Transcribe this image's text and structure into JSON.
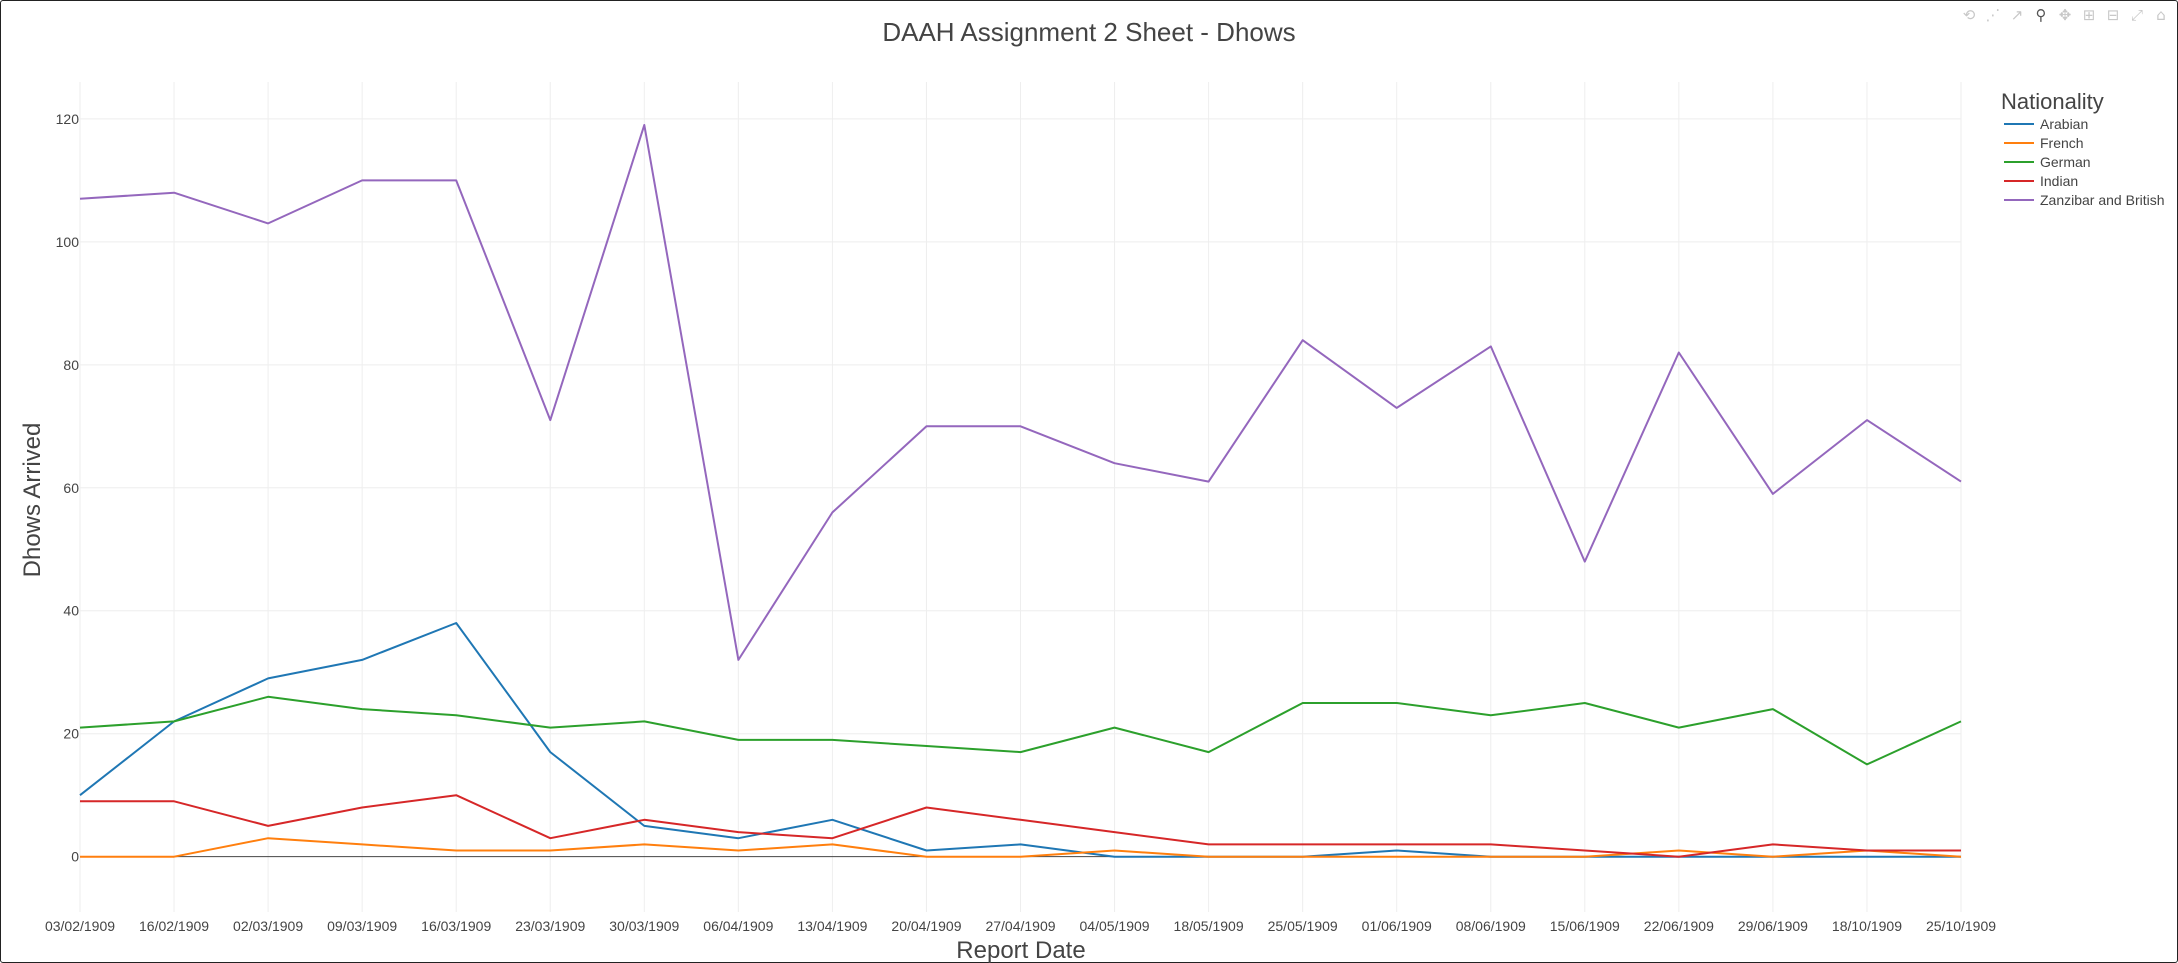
{
  "modebar": {
    "icons": [
      "reset-axes-icon",
      "autoscale-icon",
      "line-icon",
      "zoom-icon",
      "pan-icon",
      "zoom-in-icon",
      "zoom-out-icon",
      "autoscale-box-icon",
      "home-icon"
    ]
  },
  "chart_data": {
    "type": "line",
    "title": "DAAH Assignment 2 Sheet - Dhows",
    "xlabel": "Report Date",
    "ylabel": "Dhows Arrived",
    "ylim": [
      -9,
      126
    ],
    "yticks": [
      0,
      20,
      40,
      60,
      80,
      100,
      120
    ],
    "grid": true,
    "legend": {
      "title": "Nationality",
      "position": "top-right"
    },
    "categories": [
      "03/02/1909",
      "16/02/1909",
      "02/03/1909",
      "09/03/1909",
      "16/03/1909",
      "23/03/1909",
      "30/03/1909",
      "06/04/1909",
      "13/04/1909",
      "20/04/1909",
      "27/04/1909",
      "04/05/1909",
      "18/05/1909",
      "25/05/1909",
      "01/06/1909",
      "08/06/1909",
      "15/06/1909",
      "22/06/1909",
      "29/06/1909",
      "18/10/1909",
      "25/10/1909"
    ],
    "series": [
      {
        "name": "Arabian",
        "color": "#1f77b4",
        "values": [
          10,
          22,
          29,
          32,
          38,
          17,
          5,
          3,
          6,
          1,
          2,
          0,
          0,
          0,
          1,
          0,
          0,
          0,
          0,
          0,
          0
        ]
      },
      {
        "name": "French",
        "color": "#ff7f0e",
        "values": [
          0,
          0,
          3,
          2,
          1,
          1,
          2,
          1,
          2,
          0,
          0,
          1,
          0,
          0,
          0,
          0,
          0,
          1,
          0,
          1,
          0
        ]
      },
      {
        "name": "German",
        "color": "#2ca02c",
        "values": [
          21,
          22,
          26,
          24,
          23,
          21,
          22,
          19,
          19,
          18,
          17,
          21,
          17,
          25,
          25,
          23,
          25,
          21,
          24,
          15,
          22
        ]
      },
      {
        "name": "Indian",
        "color": "#d62728",
        "values": [
          9,
          9,
          5,
          8,
          10,
          3,
          6,
          4,
          3,
          8,
          6,
          4,
          2,
          2,
          2,
          2,
          1,
          0,
          2,
          1,
          1
        ]
      },
      {
        "name": "Zanzibar and British",
        "color": "#9467bd",
        "values": [
          107,
          108,
          103,
          110,
          110,
          71,
          119,
          32,
          56,
          70,
          70,
          64,
          61,
          84,
          73,
          83,
          48,
          82,
          59,
          71,
          61
        ]
      }
    ]
  }
}
